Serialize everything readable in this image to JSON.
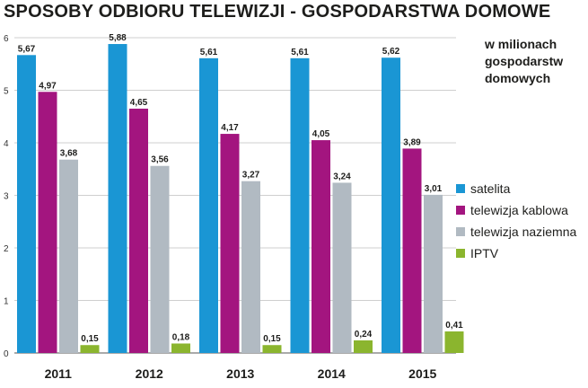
{
  "chart_data": {
    "type": "bar",
    "title": "SPOSOBY ODBIORU TELEWIZJI - GOSPODARSTWA DOMOWE",
    "unit_lines": [
      "w milionach",
      "gospodarstw",
      "domowych"
    ],
    "categories": [
      "2011",
      "2012",
      "2013",
      "2014",
      "2015"
    ],
    "ylim": [
      0,
      6
    ],
    "yticks": [
      "0",
      "1",
      "2",
      "3",
      "4",
      "5",
      "6"
    ],
    "grid": true,
    "legend_position": "right",
    "series": [
      {
        "name": "satelita",
        "color": "#1a96d4",
        "values": [
          5.67,
          5.88,
          5.61,
          5.61,
          5.62
        ],
        "labels": [
          "5,67",
          "5,88",
          "5,61",
          "5,61",
          "5,62"
        ]
      },
      {
        "name": "telewizja kablowa",
        "color": "#a3157f",
        "values": [
          4.97,
          4.65,
          4.17,
          4.05,
          3.89
        ],
        "labels": [
          "4,97",
          "4,65",
          "4,17",
          "4,05",
          "3,89"
        ]
      },
      {
        "name": "telewizja naziemna",
        "color": "#b1bac2",
        "values": [
          3.68,
          3.56,
          3.27,
          3.24,
          3.01
        ],
        "labels": [
          "3,68",
          "3,56",
          "3,27",
          "3,24",
          "3,01"
        ]
      },
      {
        "name": "IPTV",
        "color": "#8bb52e",
        "values": [
          0.15,
          0.18,
          0.15,
          0.24,
          0.41
        ],
        "labels": [
          "0,15",
          "0,18",
          "0,15",
          "0,24",
          "0,41"
        ]
      }
    ]
  }
}
